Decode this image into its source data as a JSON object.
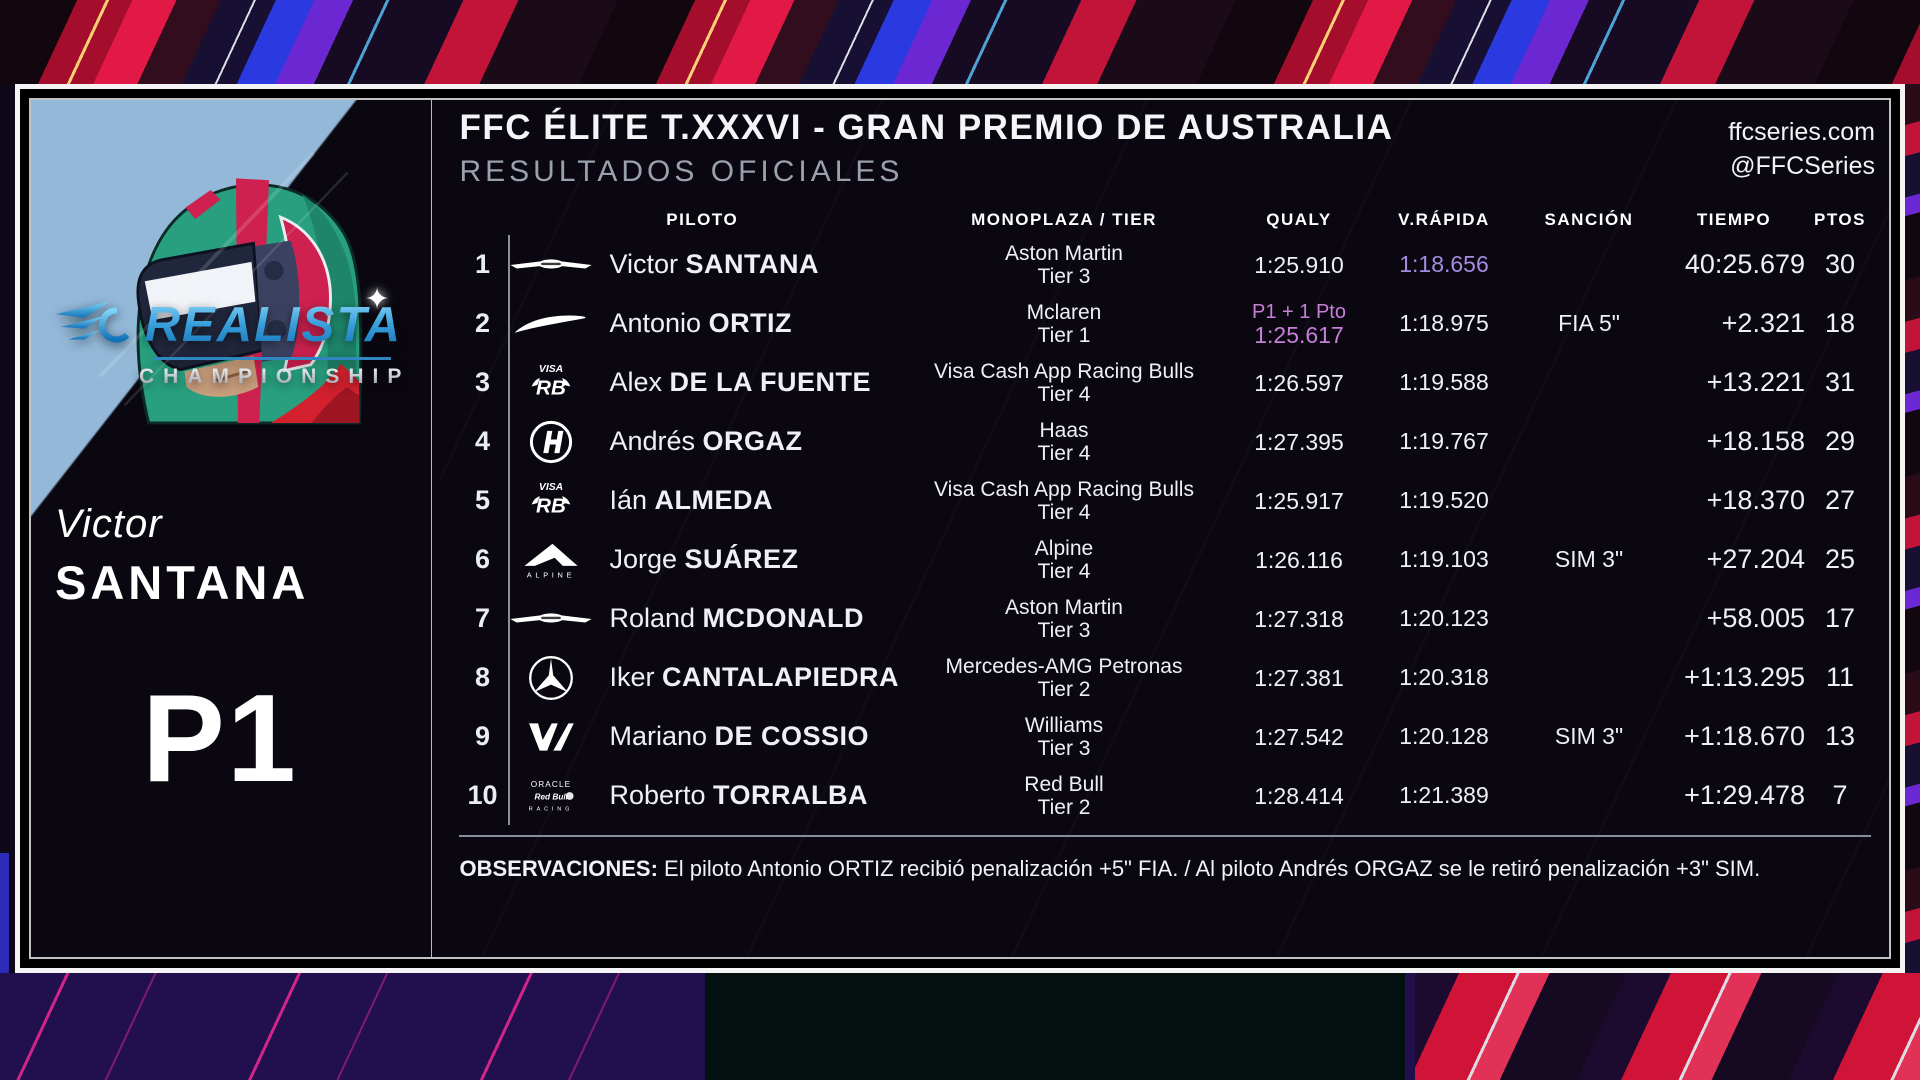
{
  "colors": {
    "fastest_lap": "#a48ae0",
    "pole": "#c77fd9",
    "subtitle": "#99a1ac",
    "logo_blue": "#2f86c0"
  },
  "header": {
    "title": "FFC ÉLITE T.XXXVI - GRAN PREMIO DE AUSTRALIA",
    "subtitle": "RESULTADOS OFICIALES",
    "website": "ffcseries.com",
    "social": "@FFCSeries"
  },
  "left_panel": {
    "series_logo": "REALISTA",
    "series_logo_sub": "CHAMPIONSHIP",
    "sparkle": "✦",
    "driver_first_name": "Victor",
    "driver_last_name": "SANTANA",
    "finish_position": "P1"
  },
  "table": {
    "columns": [
      "PILOTO",
      "MONOPLAZA / TIER",
      "QUALY",
      "V.RÁPIDA",
      "SANCIÓN",
      "TIEMPO",
      "PTOS"
    ],
    "rows": [
      {
        "pos": "1",
        "logo": "aston-martin",
        "driver_first": "Victor",
        "driver_last": "SANTANA",
        "team": "Aston Martin",
        "tier": "Tier 3",
        "qualy": "1:25.910",
        "vrapida": "1:18.656",
        "sancion": "",
        "tiempo": "40:25.679",
        "ptos": "30",
        "vrapida_highlight": true
      },
      {
        "pos": "2",
        "logo": "mclaren",
        "driver_first": "Antonio",
        "driver_last": "ORTIZ",
        "team": "Mclaren",
        "tier": "Tier 1",
        "qualy_top": "P1 + 1 Pto",
        "qualy": "1:25.617",
        "qualy_highlight": true,
        "vrapida": "1:18.975",
        "sancion": "FIA 5\"",
        "tiempo": "+2.321",
        "ptos": "18"
      },
      {
        "pos": "3",
        "logo": "vcarb",
        "driver_first": "Alex",
        "driver_last": "DE LA FUENTE",
        "team": "Visa Cash App Racing Bulls",
        "tier": "Tier 4",
        "qualy": "1:26.597",
        "vrapida": "1:19.588",
        "sancion": "",
        "tiempo": "+13.221",
        "ptos": "31"
      },
      {
        "pos": "4",
        "logo": "haas",
        "driver_first": "Andrés",
        "driver_last": "ORGAZ",
        "team": "Haas",
        "tier": "Tier 4",
        "qualy": "1:27.395",
        "vrapida": "1:19.767",
        "sancion": "",
        "tiempo": "+18.158",
        "ptos": "29"
      },
      {
        "pos": "5",
        "logo": "vcarb",
        "driver_first": "Ián",
        "driver_last": "ALMEDA",
        "team": "Visa Cash App Racing Bulls",
        "tier": "Tier 4",
        "qualy": "1:25.917",
        "vrapida": "1:19.520",
        "sancion": "",
        "tiempo": "+18.370",
        "ptos": "27"
      },
      {
        "pos": "6",
        "logo": "alpine",
        "driver_first": "Jorge",
        "driver_last": "SUÁREZ",
        "team": "Alpine",
        "tier": "Tier 4",
        "qualy": "1:26.116",
        "vrapida": "1:19.103",
        "sancion": "SIM 3\"",
        "tiempo": "+27.204",
        "ptos": "25"
      },
      {
        "pos": "7",
        "logo": "aston-martin",
        "driver_first": "Roland",
        "driver_last": "MCDONALD",
        "team": "Aston Martin",
        "tier": "Tier 3",
        "qualy": "1:27.318",
        "vrapida": "1:20.123",
        "sancion": "",
        "tiempo": "+58.005",
        "ptos": "17"
      },
      {
        "pos": "8",
        "logo": "mercedes",
        "driver_first": "Iker",
        "driver_last": "CANTALAPIEDRA",
        "team": "Mercedes-AMG Petronas",
        "tier": "Tier 2",
        "qualy": "1:27.381",
        "vrapida": "1:20.318",
        "sancion": "",
        "tiempo": "+1:13.295",
        "ptos": "11"
      },
      {
        "pos": "9",
        "logo": "williams",
        "driver_first": "Mariano",
        "driver_last": "DE COSSIO",
        "team": "Williams",
        "tier": "Tier 3",
        "qualy": "1:27.542",
        "vrapida": "1:20.128",
        "sancion": "SIM 3\"",
        "tiempo": "+1:18.670",
        "ptos": "13"
      },
      {
        "pos": "10",
        "logo": "redbull",
        "driver_first": "Roberto",
        "driver_last": "TORRALBA",
        "team": "Red Bull",
        "tier": "Tier 2",
        "qualy": "1:28.414",
        "vrapida": "1:21.389",
        "sancion": "",
        "tiempo": "+1:29.478",
        "ptos": "7"
      }
    ]
  },
  "observations": {
    "label": "OBSERVACIONES:",
    "text": " El piloto Antonio ORTIZ recibió penalización +5\" FIA. / Al piloto Andrés ORGAZ se le retiró penalización +3\" SIM."
  }
}
